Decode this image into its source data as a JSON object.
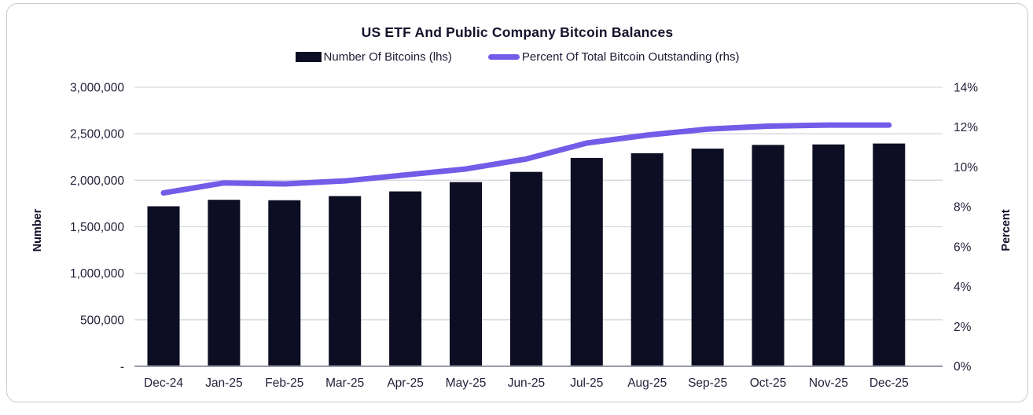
{
  "chart_data": {
    "type": "bar",
    "title": "US ETF And Public Company Bitcoin Balances",
    "categories": [
      "Dec-24",
      "Jan-25",
      "Feb-25",
      "Mar-25",
      "Apr-25",
      "May-25",
      "Jun-25",
      "Jul-25",
      "Aug-25",
      "Sep-25",
      "Oct-25",
      "Nov-25",
      "Dec-25"
    ],
    "series": [
      {
        "name": "Number Of Bitcoins (lhs)",
        "type": "bar",
        "axis": "left",
        "values": [
          1720000,
          1790000,
          1785000,
          1830000,
          1880000,
          1980000,
          2090000,
          2240000,
          2290000,
          2340000,
          2380000,
          2385000,
          2395000
        ]
      },
      {
        "name": "Percent Of Total Bitcoin Outstanding (rhs)",
        "type": "line",
        "axis": "right",
        "values": [
          8.7,
          9.2,
          9.15,
          9.3,
          9.6,
          9.9,
          10.4,
          11.2,
          11.6,
          11.9,
          12.05,
          12.1,
          12.1
        ]
      }
    ],
    "left_axis": {
      "title": "Number",
      "min": 0,
      "max": 3000000,
      "step": 500000,
      "zero_label": "-",
      "tick_labels": [
        "-",
        "500,000",
        "1,000,000",
        "1,500,000",
        "2,000,000",
        "2,500,000",
        "3,000,000"
      ]
    },
    "right_axis": {
      "title": "Percent",
      "min": 0,
      "max": 14,
      "step": 2,
      "suffix": "%",
      "tick_labels": [
        "0%",
        "2%",
        "4%",
        "6%",
        "8%",
        "10%",
        "12%",
        "14%"
      ]
    },
    "grid": "horizontal",
    "legend_position": "top",
    "colors": {
      "bar": "#0d0e23",
      "line": "#735ce8",
      "grid": "#d7d7e0",
      "axis_line": "#9b9bab",
      "text": "#23213a"
    }
  }
}
